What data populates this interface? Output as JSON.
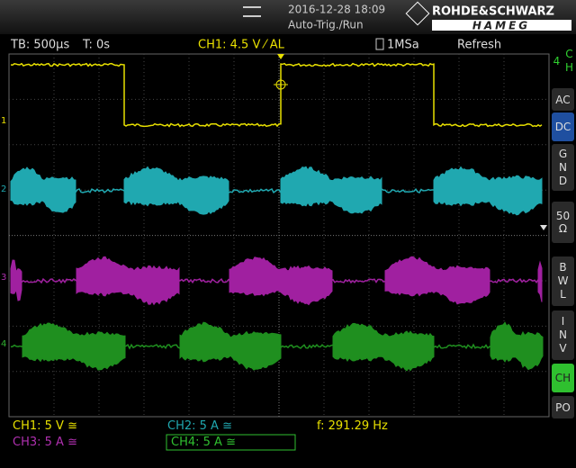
{
  "header": {
    "datetime": "2016-12-28 18:09",
    "status": "Auto-Trig./Run",
    "brand": "ROHDE&SCHWARZ",
    "brand_sub": "HAMEG"
  },
  "status_bar": {
    "timebase": "TB: 500µs",
    "trigger_time": "T: 0s",
    "trigger": "CH1: 4.5 V ⁄ AL",
    "sample_rate": "1MSa",
    "mode": "Refresh"
  },
  "side_menu": {
    "title": "CH 4",
    "items": [
      "AC",
      "DC",
      "GND",
      "50 Ω",
      "BWL",
      "INV",
      "CH",
      "PO"
    ]
  },
  "channel_markers": [
    "1",
    "2",
    "3",
    "4"
  ],
  "footer": {
    "ch1": "CH1: 5 V ≅",
    "ch2": "CH2: 5 A ≅",
    "frequency": "f: 291.29 Hz",
    "ch3": "CH3: 5 A ≅",
    "ch4": "CH4: 5 A ≅"
  }
}
